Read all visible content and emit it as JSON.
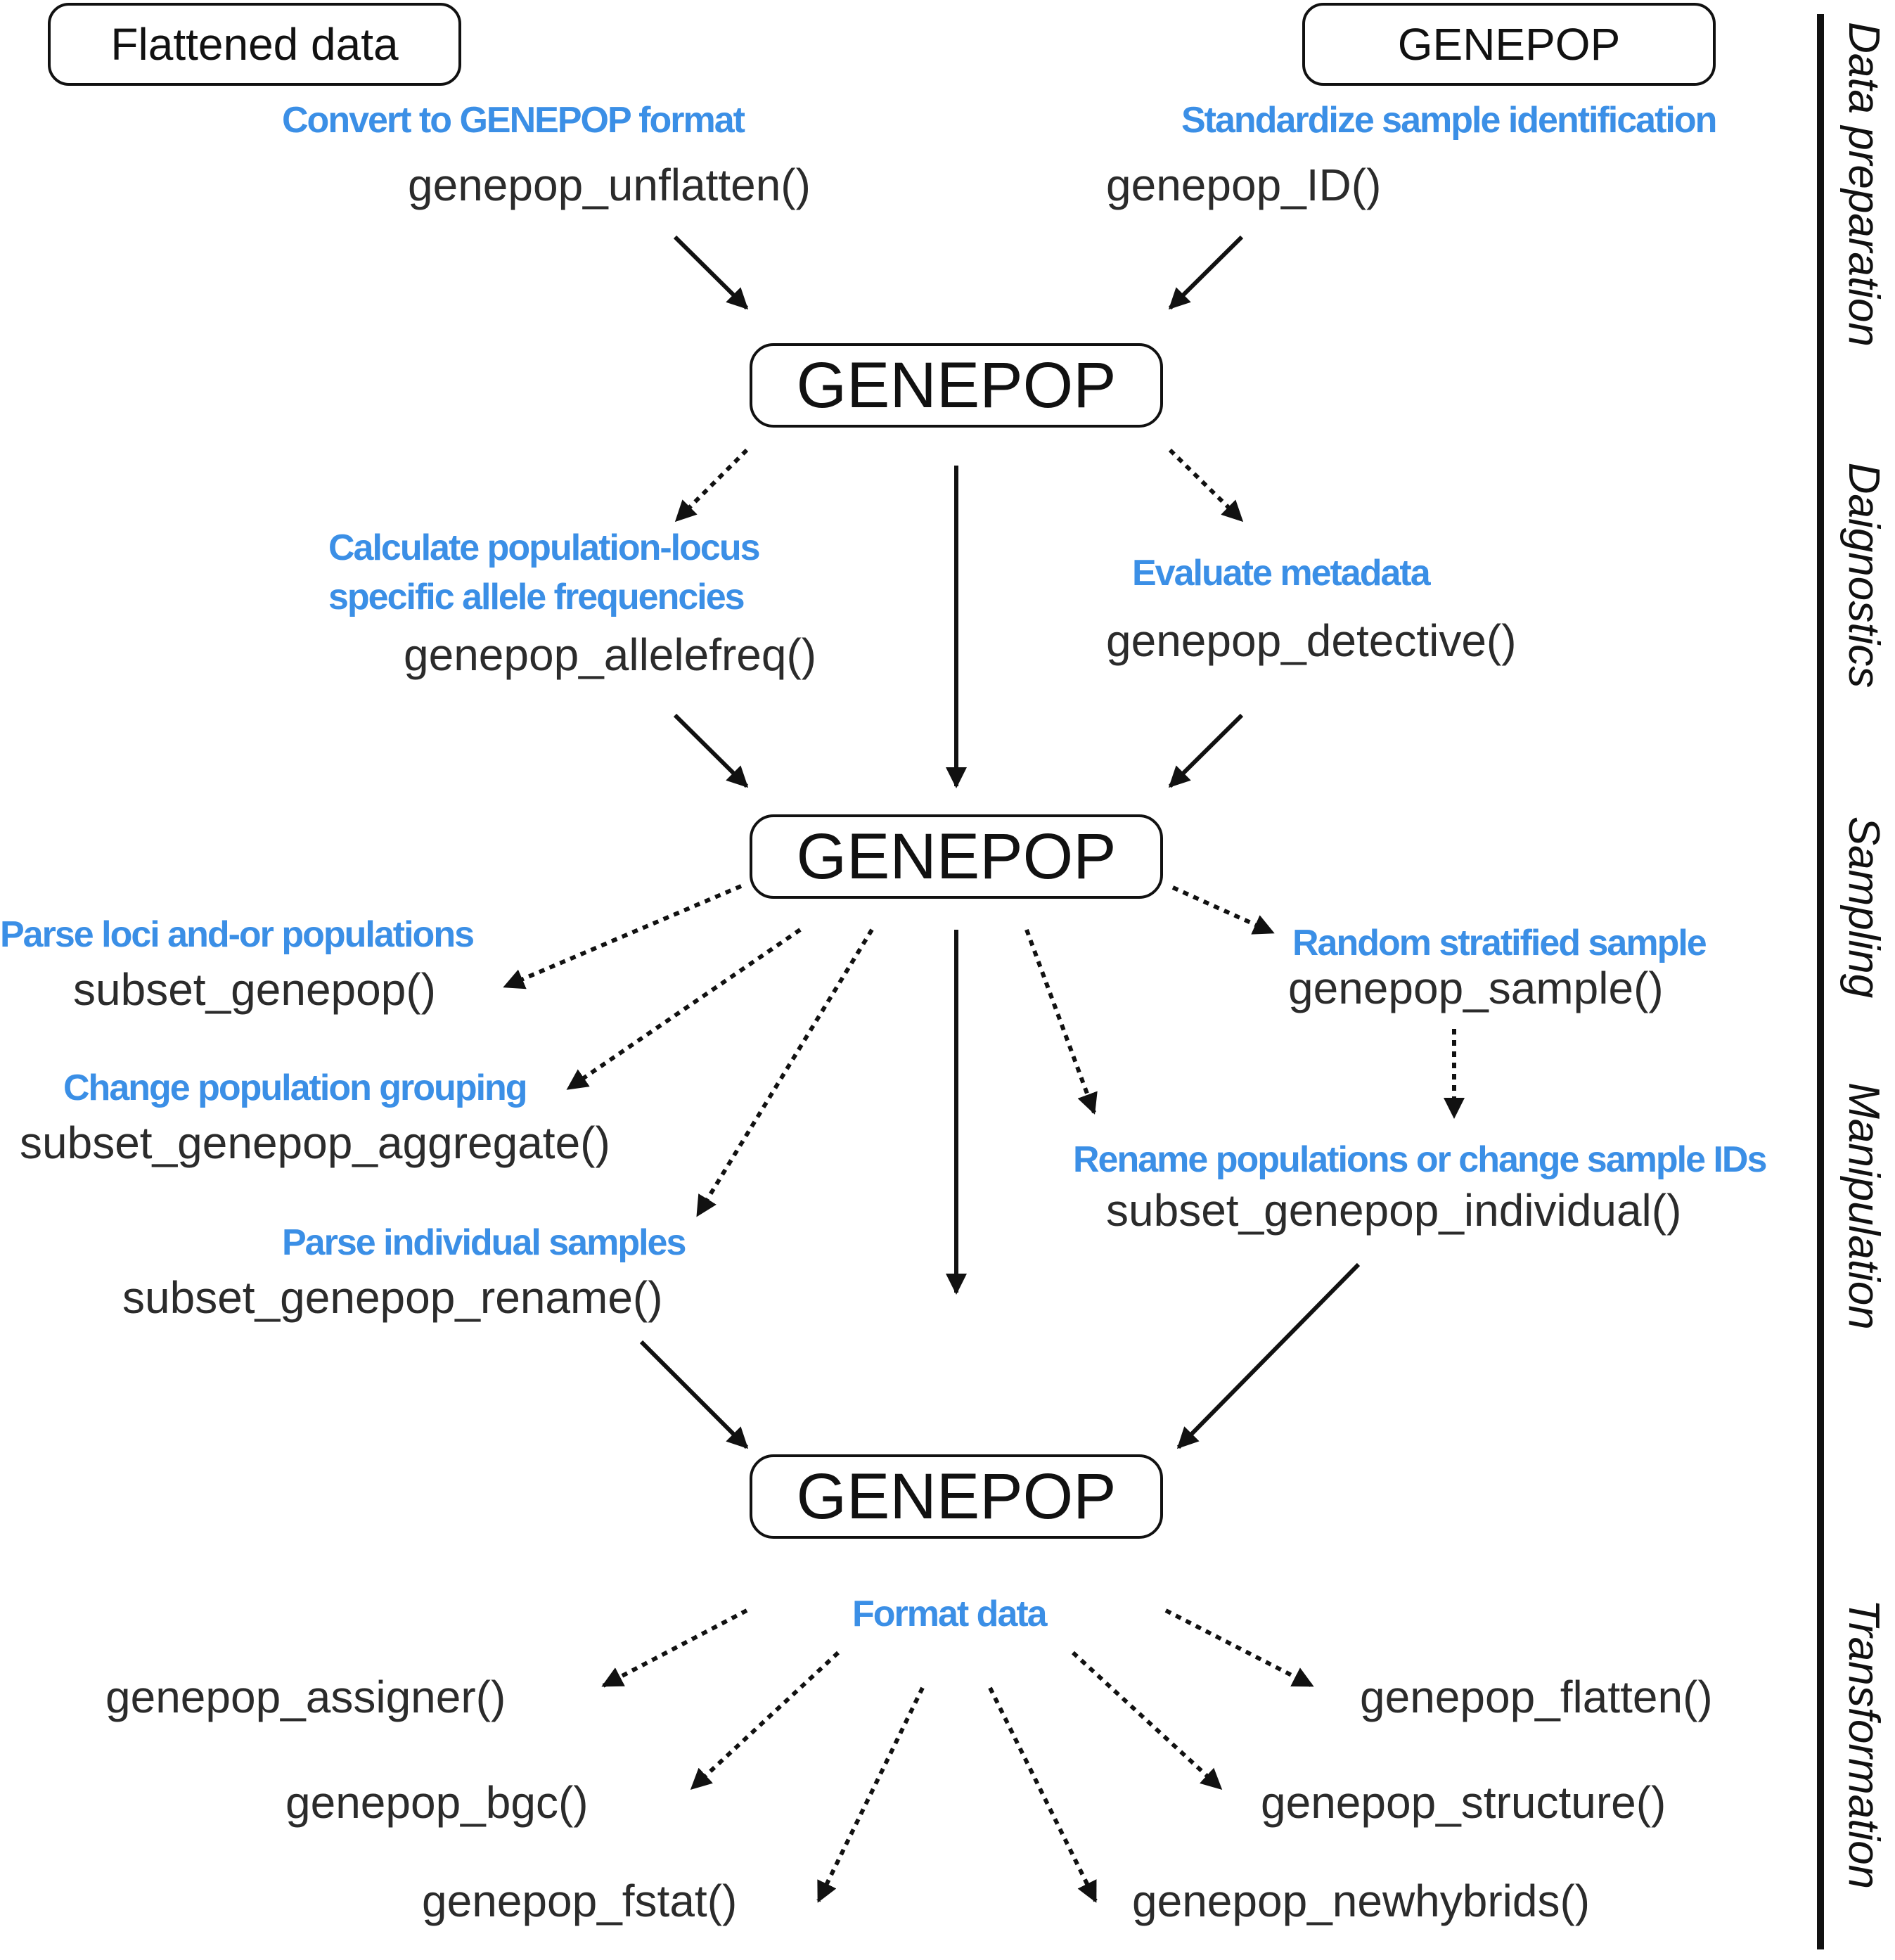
{
  "boxes": {
    "flattened_data": "Flattened data",
    "genepop_input": "GENEPOP",
    "genepop_prepared": "GENEPOP",
    "genepop_diagnosed": "GENEPOP",
    "genepop_final": "GENEPOP"
  },
  "steps": {
    "convert": {
      "label": "Convert to GENEPOP format",
      "function": "genepop_unflatten()"
    },
    "standardize": {
      "label": "Standardize sample identification",
      "function": "genepop_ID()"
    },
    "allele_freq": {
      "label_line1": "Calculate population-locus",
      "label_line2": "specific allele frequencies",
      "function": "genepop_allelefreq()"
    },
    "metadata": {
      "label": "Evaluate metadata",
      "function": "genepop_detective()"
    },
    "parse_loci": {
      "label": "Parse loci and-or populations",
      "function": "subset_genepop()"
    },
    "grouping": {
      "label": "Change population grouping",
      "function": "subset_genepop_aggregate()"
    },
    "parse_individual": {
      "label": "Parse individual samples",
      "function": "subset_genepop_rename()"
    },
    "random_sample": {
      "label": "Random stratified sample",
      "function": "genepop_sample()"
    },
    "rename": {
      "label": "Rename populations or change sample IDs",
      "function": "subset_genepop_individual()"
    },
    "format": {
      "label": "Format data"
    }
  },
  "outputs": {
    "assigner": "genepop_assigner()",
    "bgc": "genepop_bgc()",
    "fstat": "genepop_fstat()",
    "newhybrids": "genepop_newhybrids()",
    "structure": "genepop_structure()",
    "flatten": "genepop_flatten()"
  },
  "stages": {
    "data_preparation": "Data preparation",
    "diagnostics": "Daignostics",
    "sampling": "Sampling",
    "manipulation": "Manipulation",
    "transformation": "Transformation"
  },
  "colors": {
    "label": "#3b8fe6",
    "function": "#2b2b2b",
    "stroke": "#111111"
  }
}
